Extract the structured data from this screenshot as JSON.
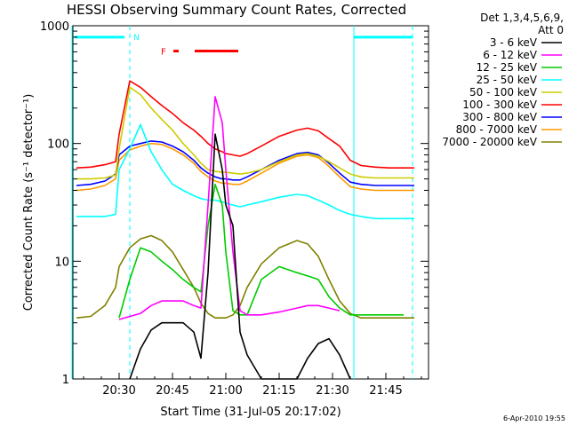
{
  "chart_data": {
    "type": "line",
    "title": "HESSI Observing Summary Count Rates, Corrected",
    "xlabel": "Start Time (31-Jul-05 20:17:02)",
    "ylabel": "Corrected Count Rate (s⁻¹ detector⁻¹)",
    "y_scale": "log",
    "xlim": [
      "20:17",
      "21:57"
    ],
    "ylim": [
      1,
      1000
    ],
    "grid": false,
    "x_ticks": [
      "20:30",
      "20:45",
      "21:00",
      "21:15",
      "21:30",
      "21:45"
    ],
    "y_ticks": [
      "1",
      "10",
      "100",
      "1000"
    ],
    "legend_position": "right",
    "legend_header": [
      "Det 1,3,4,5,6,9,",
      "Att 0"
    ],
    "annotations": {
      "night_marker_label": "N",
      "flare_marker_label": "F"
    },
    "x": [
      "20:18",
      "20:22",
      "20:26",
      "20:29",
      "20:30",
      "20:33",
      "20:36",
      "20:39",
      "20:42",
      "20:45",
      "20:48",
      "20:51",
      "20:53",
      "20:55",
      "20:57",
      "20:59",
      "21:00",
      "21:02",
      "21:04",
      "21:06",
      "21:10",
      "21:15",
      "21:20",
      "21:23",
      "21:26",
      "21:29",
      "21:32",
      "21:35",
      "21:38",
      "21:42",
      "21:46",
      "21:50",
      "21:53"
    ],
    "series": [
      {
        "name": "3 - 6 keV",
        "color": "#000000",
        "values": [
          null,
          null,
          null,
          null,
          null,
          1.0,
          1.8,
          2.6,
          3.0,
          3.0,
          3.0,
          2.5,
          1.5,
          8,
          120,
          60,
          30,
          20,
          2.5,
          1.6,
          1.0,
          1.0,
          1.0,
          1.5,
          2.0,
          2.2,
          1.6,
          1.0,
          null,
          null,
          null,
          null,
          null
        ]
      },
      {
        "name": "6 - 12 keV",
        "color": "#ff00ff",
        "values": [
          null,
          null,
          null,
          null,
          3.2,
          3.4,
          3.6,
          4.2,
          4.6,
          4.6,
          4.6,
          4.2,
          4.0,
          30,
          250,
          150,
          60,
          12,
          3.8,
          3.5,
          3.5,
          3.7,
          4.0,
          4.2,
          4.2,
          4.0,
          3.8,
          null,
          null,
          null,
          null,
          null,
          null
        ]
      },
      {
        "name": "12 - 25 keV",
        "color": "#00cc00",
        "values": [
          null,
          null,
          null,
          null,
          3.3,
          7.0,
          13,
          12,
          10,
          8.5,
          7.0,
          6.0,
          5.5,
          20,
          45,
          30,
          12,
          3.8,
          3.5,
          3.5,
          7,
          9,
          8,
          7.5,
          7,
          5,
          4,
          3.5,
          3.5,
          3.5,
          3.5,
          3.5,
          null
        ]
      },
      {
        "name": "25 - 50 keV",
        "color": "#00ffff",
        "values": [
          24,
          24,
          24,
          25,
          60,
          90,
          145,
          85,
          60,
          45,
          40,
          36,
          34,
          33,
          33,
          32,
          31,
          30,
          29,
          30,
          32,
          35,
          37,
          36,
          33,
          30,
          27,
          25,
          24,
          23,
          23,
          23,
          23
        ]
      },
      {
        "name": "50 - 100 keV",
        "color": "#cccc00",
        "values": [
          50,
          50,
          51,
          54,
          90,
          300,
          260,
          200,
          160,
          130,
          100,
          80,
          68,
          60,
          58,
          57,
          57,
          56,
          55,
          56,
          60,
          70,
          80,
          82,
          78,
          70,
          62,
          55,
          52,
          51,
          51,
          51,
          51
        ]
      },
      {
        "name": "100 - 300 keV",
        "color": "#ff0000",
        "values": [
          62,
          63,
          66,
          70,
          120,
          340,
          300,
          250,
          210,
          180,
          150,
          130,
          115,
          100,
          90,
          85,
          82,
          80,
          78,
          82,
          95,
          115,
          130,
          135,
          128,
          110,
          95,
          72,
          65,
          63,
          62,
          62,
          62
        ]
      },
      {
        "name": "300 - 800 keV",
        "color": "#0000ff",
        "values": [
          44,
          45,
          48,
          55,
          80,
          95,
          100,
          105,
          103,
          95,
          85,
          72,
          62,
          56,
          52,
          50,
          50,
          49,
          49,
          52,
          60,
          72,
          82,
          84,
          80,
          68,
          56,
          47,
          45,
          44,
          44,
          44,
          44
        ]
      },
      {
        "name": "800 - 7000 keV",
        "color": "#ff9900",
        "values": [
          40,
          41,
          44,
          50,
          72,
          88,
          95,
          100,
          98,
          90,
          80,
          68,
          58,
          52,
          48,
          46,
          46,
          45,
          45,
          48,
          56,
          68,
          78,
          80,
          76,
          64,
          52,
          43,
          41,
          40,
          40,
          40,
          40
        ]
      },
      {
        "name": "7000 - 20000 keV",
        "color": "#808000",
        "values": [
          3.3,
          3.4,
          4.2,
          6.0,
          9.0,
          13,
          15.5,
          16.5,
          15,
          12,
          8.5,
          6.0,
          4.4,
          3.6,
          3.3,
          3.3,
          3.3,
          3.5,
          4.2,
          6.0,
          9.5,
          13,
          15,
          14,
          11,
          7.0,
          4.6,
          3.6,
          3.3,
          3.3,
          3.3,
          3.3,
          3.3
        ]
      }
    ]
  },
  "footer": {
    "timestamp": "6-Apr-2010 19:55"
  }
}
